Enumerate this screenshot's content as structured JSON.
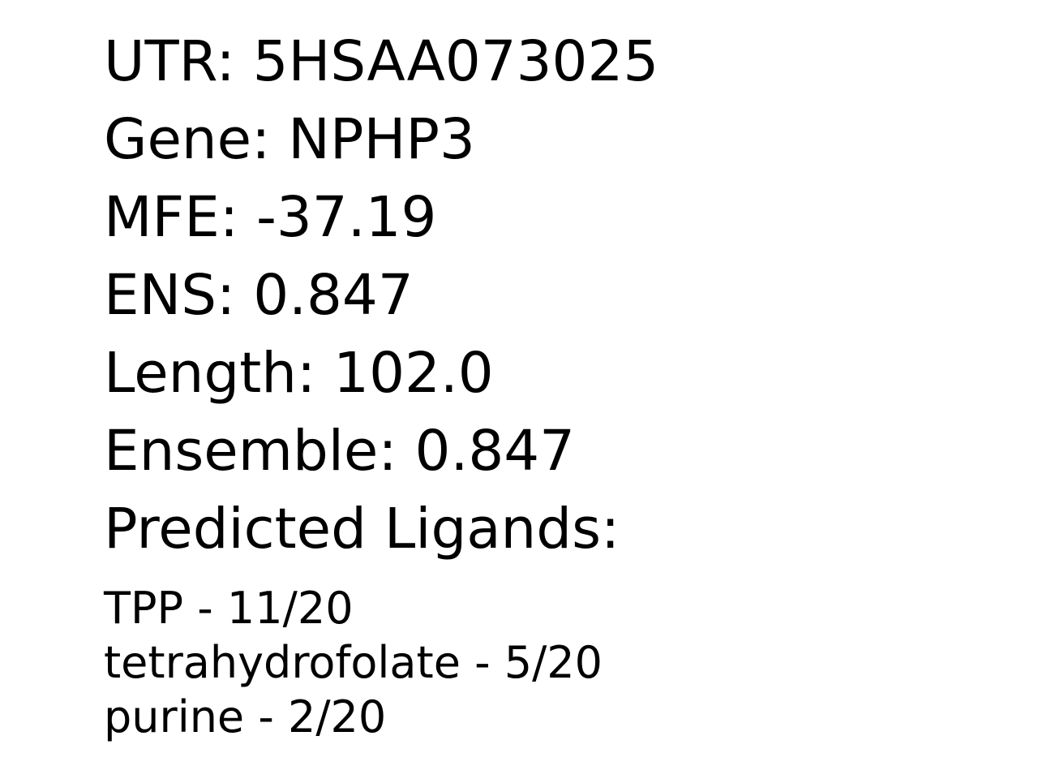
{
  "fields": {
    "utr": "UTR: 5HSAA073025",
    "gene": "Gene: NPHP3",
    "mfe": "MFE: -37.19",
    "ens": "ENS: 0.847",
    "length": "Length: 102.0",
    "ensemble": "Ensemble: 0.847",
    "ligands_heading": "Predicted Ligands:"
  },
  "ligands": [
    "TPP - 11/20",
    "tetrahydrofolate - 5/20",
    "purine - 2/20"
  ]
}
